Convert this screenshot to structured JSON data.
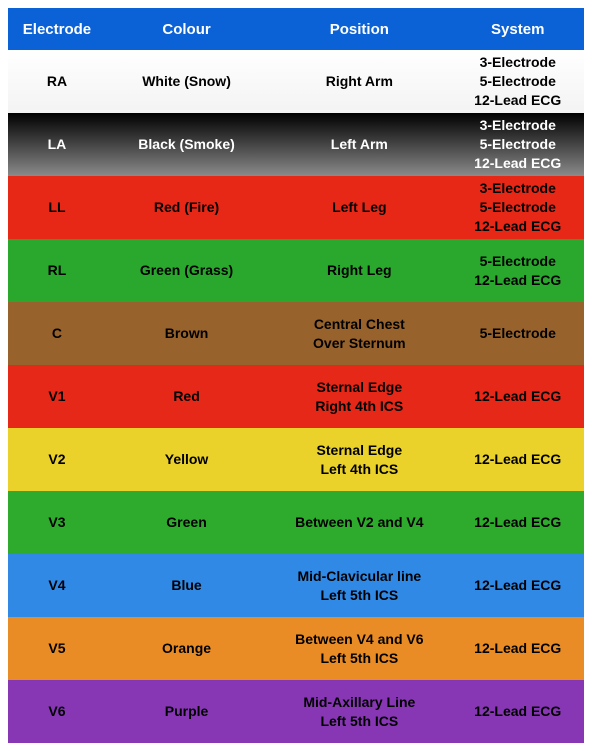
{
  "table": {
    "headers": {
      "electrode": "Electrode",
      "colour": "Colour",
      "position": "Position",
      "system": "System"
    },
    "header_bg": "#0b62d6",
    "header_fg": "#ffffff",
    "rows": [
      {
        "electrode": "RA",
        "colour": "White (Snow)",
        "position": "Right Arm",
        "system": "3-Electrode\n5-Electrode\n12-Lead ECG",
        "bg": "linear-gradient(to bottom, #ffffff, #f3f3f3)",
        "fg": "#000000"
      },
      {
        "electrode": "LA",
        "colour": "Black (Smoke)",
        "position": "Left Arm",
        "system": "3-Electrode\n5-Electrode\n12-Lead ECG",
        "bg": "linear-gradient(to bottom, #000000, #8a8a8a)",
        "fg": "#ffffff"
      },
      {
        "electrode": "LL",
        "colour": "Red (Fire)",
        "position": "Left Leg",
        "system": "3-Electrode\n5-Electrode\n12-Lead ECG",
        "bg": "linear-gradient(to bottom, #e82817, #e82817)",
        "fg": "#000000"
      },
      {
        "electrode": "RL",
        "colour": "Green (Grass)",
        "position": "Right Leg",
        "system": "5-Electrode\n12-Lead ECG",
        "bg": "linear-gradient(to bottom, #2aa82d, #2aa82d)",
        "fg": "#000000"
      },
      {
        "electrode": "C",
        "colour": "Brown",
        "position": "Central Chest\nOver Sternum",
        "system": "5-Electrode",
        "bg": "linear-gradient(to bottom, #97622c, #97622c)",
        "fg": "#000000"
      },
      {
        "electrode": "V1",
        "colour": "Red",
        "position": "Sternal Edge\nRight 4th ICS",
        "system": "12-Lead ECG",
        "bg": "linear-gradient(to bottom, #e52817, #e52817)",
        "fg": "#000000"
      },
      {
        "electrode": "V2",
        "colour": "Yellow",
        "position": "Sternal Edge\nLeft 4th ICS",
        "system": "12-Lead ECG",
        "bg": "linear-gradient(to bottom, #ead22b, #ead22b)",
        "fg": "#000000"
      },
      {
        "electrode": "V3",
        "colour": "Green",
        "position": "Between V2 and V4",
        "system": "12-Lead ECG",
        "bg": "linear-gradient(to bottom, #2eab2c, #2eab2c)",
        "fg": "#000000"
      },
      {
        "electrode": "V4",
        "colour": "Blue",
        "position": "Mid-Clavicular line\nLeft 5th ICS",
        "system": "12-Lead ECG",
        "bg": "linear-gradient(to bottom, #3189e6, #3189e6)",
        "fg": "#000000"
      },
      {
        "electrode": "V5",
        "colour": "Orange",
        "position": "Between V4 and V6\nLeft 5th ICS",
        "system": "12-Lead ECG",
        "bg": "linear-gradient(to bottom, #ea8c26, #ea8c26)",
        "fg": "#000000"
      },
      {
        "electrode": "V6",
        "colour": "Purple",
        "position": "Mid-Axillary Line\nLeft 5th ICS",
        "system": "12-Lead ECG",
        "bg": "linear-gradient(to bottom, #8737b4, #8737b4)",
        "fg": "#000000"
      }
    ]
  }
}
